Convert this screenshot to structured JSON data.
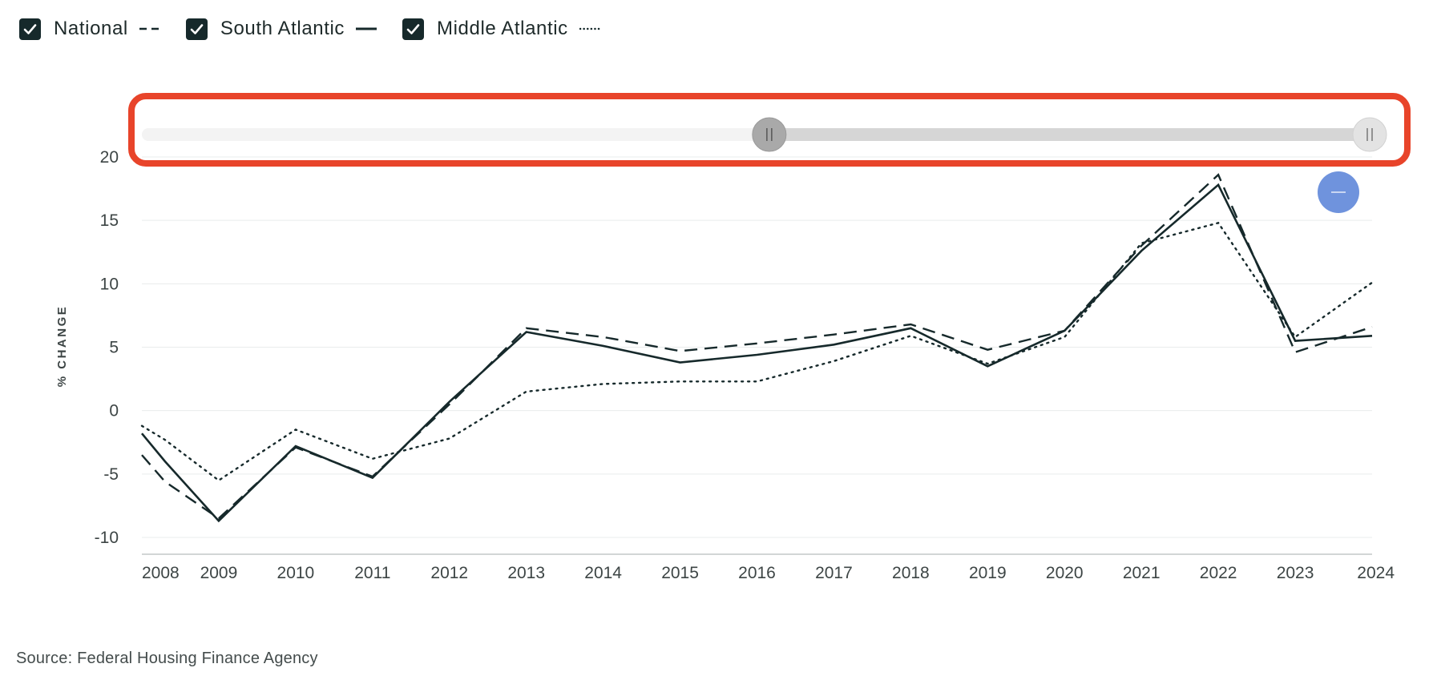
{
  "legend": {
    "items": [
      {
        "label": "National",
        "checked": true,
        "style": "dashed",
        "icon": "check-icon"
      },
      {
        "label": "South Atlantic",
        "checked": true,
        "style": "solid",
        "icon": "check-icon"
      },
      {
        "label": "Middle Atlantic",
        "checked": true,
        "style": "dotted",
        "icon": "check-icon"
      }
    ]
  },
  "source": "Source: Federal Housing Finance Agency",
  "range_slider": {
    "range_start": 0.51,
    "range_end": 1.0,
    "handle_icon": "grip-icon",
    "annotation_color": "#e8442a"
  },
  "zoom_out_button": {
    "icon": "minus-icon",
    "color": "#6f93dd"
  },
  "chart_data": {
    "type": "line",
    "x": [
      "2008",
      "2009",
      "2010",
      "2011",
      "2012",
      "2013",
      "2014",
      "2015",
      "2016",
      "2017",
      "2018",
      "2019",
      "2020",
      "2021",
      "2022",
      "2023",
      "2024"
    ],
    "ylabel": "% CHANGE",
    "xlabel": "",
    "ylim": [
      -10,
      20
    ],
    "yticks": [
      "20",
      "15",
      "10",
      "5",
      "0",
      "-5",
      "-10"
    ],
    "grid": true,
    "legend_position": "top-left",
    "line_color": "#16292b",
    "series": [
      {
        "name": "National",
        "style": "dashed",
        "points": [
          [
            2008,
            -3.5
          ],
          [
            2008.3,
            -5.6
          ],
          [
            2009,
            -8.5
          ],
          [
            2010,
            -2.9
          ],
          [
            2011,
            -5.2
          ],
          [
            2012,
            0.5
          ],
          [
            2013,
            6.5
          ],
          [
            2014,
            5.8
          ],
          [
            2015,
            4.7
          ],
          [
            2016,
            5.3
          ],
          [
            2017,
            6.0
          ],
          [
            2018,
            6.8
          ],
          [
            2019,
            4.8
          ],
          [
            2020,
            6.3
          ],
          [
            2021,
            13.0
          ],
          [
            2022,
            18.6
          ],
          [
            2023,
            4.6
          ],
          [
            2024,
            6.6
          ]
        ]
      },
      {
        "name": "South Atlantic",
        "style": "solid",
        "points": [
          [
            2008,
            -1.8
          ],
          [
            2008.3,
            -4.0
          ],
          [
            2009,
            -8.7
          ],
          [
            2010,
            -2.8
          ],
          [
            2011,
            -5.3
          ],
          [
            2012,
            0.7
          ],
          [
            2013,
            6.2
          ],
          [
            2014,
            5.1
          ],
          [
            2015,
            3.8
          ],
          [
            2016,
            4.4
          ],
          [
            2017,
            5.2
          ],
          [
            2018,
            6.5
          ],
          [
            2019,
            3.5
          ],
          [
            2020,
            6.3
          ],
          [
            2021,
            12.6
          ],
          [
            2022,
            17.8
          ],
          [
            2023,
            5.5
          ],
          [
            2024,
            5.9
          ]
        ]
      },
      {
        "name": "Middle Atlantic",
        "style": "dotted",
        "points": [
          [
            2008,
            -1.2
          ],
          [
            2008.3,
            -2.3
          ],
          [
            2009,
            -5.5
          ],
          [
            2010,
            -1.5
          ],
          [
            2011,
            -3.8
          ],
          [
            2012,
            -2.2
          ],
          [
            2013,
            1.5
          ],
          [
            2014,
            2.1
          ],
          [
            2015,
            2.3
          ],
          [
            2016,
            2.3
          ],
          [
            2017,
            3.9
          ],
          [
            2018,
            5.9
          ],
          [
            2019,
            3.7
          ],
          [
            2020,
            5.8
          ],
          [
            2021,
            13.2
          ],
          [
            2022,
            14.8
          ],
          [
            2023,
            5.8
          ],
          [
            2024,
            10.1
          ]
        ]
      }
    ]
  }
}
